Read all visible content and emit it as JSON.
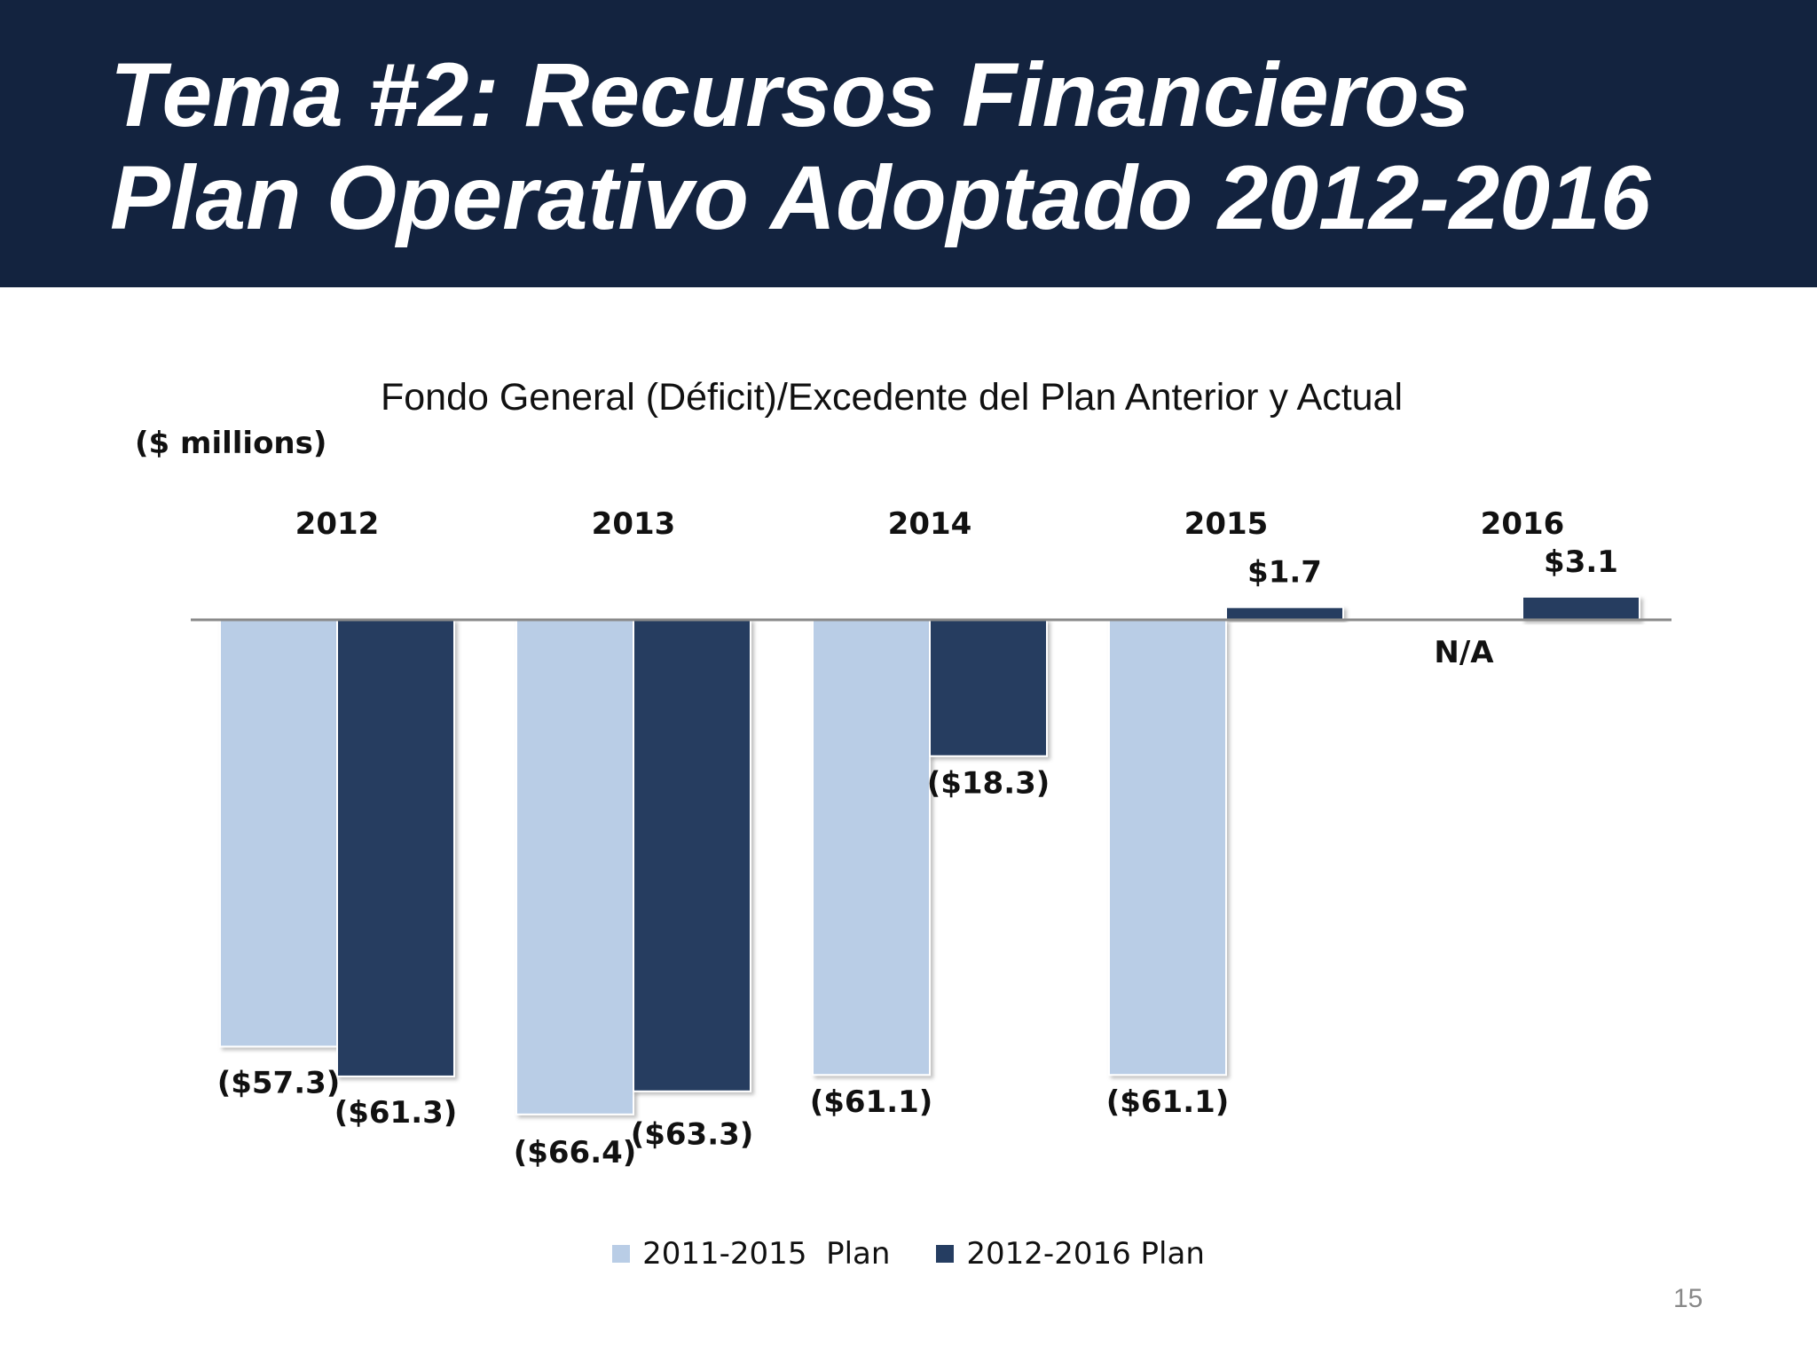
{
  "slide": {
    "title_line1": "Tema #2: Recursos Financieros",
    "title_line2": "Plan Operativo Adoptado 2012-2016",
    "page_number": "15"
  },
  "colors": {
    "header_bg": "#13233f",
    "series_light": "#b9cde6",
    "series_dark": "#253d61",
    "axis": "#8a8a8a"
  },
  "chart_data": {
    "type": "bar",
    "title": "Fondo General (Déficit)/Excedente del Plan Anterior y Actual",
    "unit_label": "($ millions)",
    "xlabel": "",
    "ylabel": "",
    "categories": [
      "2012",
      "2013",
      "2014",
      "2015",
      "2016"
    ],
    "series": [
      {
        "name": "2011-2015  Plan",
        "values": [
          -57.3,
          -66.4,
          -61.1,
          -61.1,
          null
        ],
        "labels": [
          "($57.3)",
          "($66.4)",
          "($61.1)",
          "($61.1)",
          "N/A"
        ]
      },
      {
        "name": "2012-2016 Plan",
        "values": [
          -61.3,
          -63.3,
          -18.3,
          1.7,
          3.1
        ],
        "labels": [
          "($61.3)",
          "($63.3)",
          "($18.3)",
          "$1.7",
          "$3.1"
        ]
      }
    ],
    "ylim": [
      -70,
      5
    ],
    "grid": false,
    "legend_position": "bottom"
  }
}
